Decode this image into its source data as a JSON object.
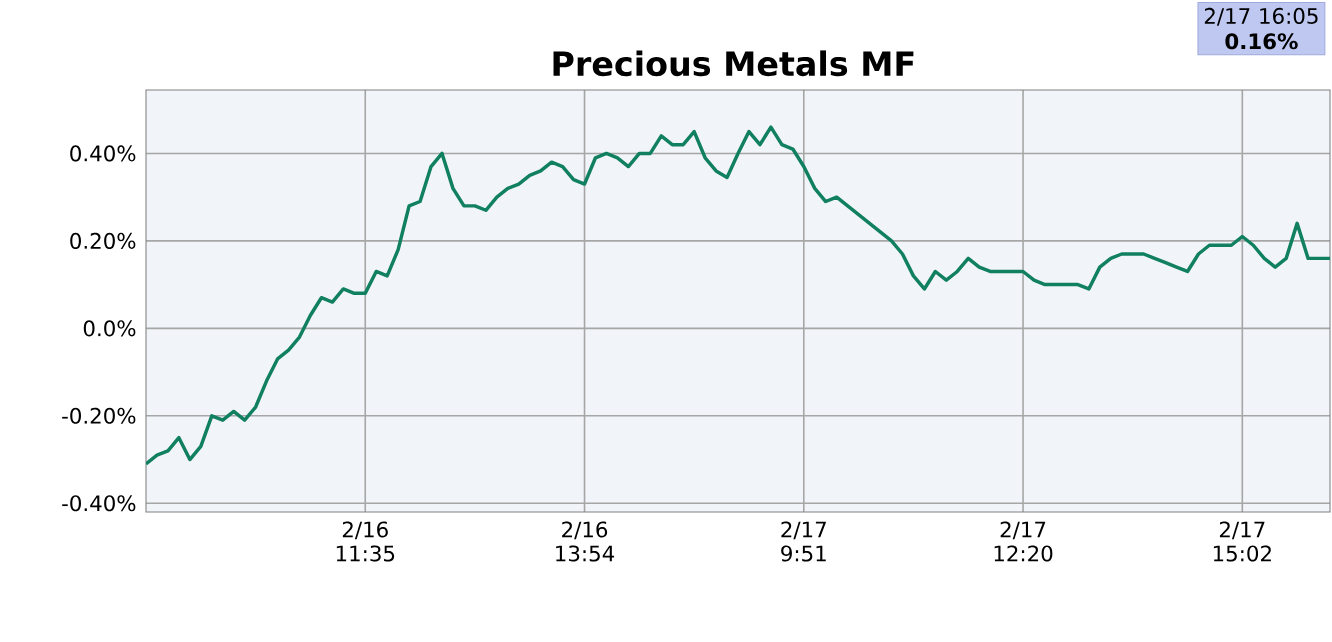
{
  "chart_data": {
    "type": "line",
    "title": "Precious Metals MF",
    "categories": [
      null,
      null,
      null,
      null,
      null,
      null,
      null,
      null,
      null,
      null,
      null,
      null,
      null,
      null,
      null,
      null,
      null,
      null,
      null,
      null,
      "2/16 11:35",
      null,
      null,
      null,
      null,
      null,
      null,
      null,
      null,
      null,
      null,
      null,
      null,
      null,
      null,
      null,
      null,
      null,
      null,
      null,
      "2/16 13:54",
      null,
      null,
      null,
      null,
      null,
      null,
      null,
      null,
      null,
      null,
      null,
      null,
      null,
      null,
      null,
      null,
      null,
      null,
      null,
      "2/17 9:51",
      null,
      null,
      null,
      null,
      null,
      null,
      null,
      null,
      null,
      null,
      null,
      null,
      null,
      null,
      null,
      null,
      null,
      null,
      null,
      "2/17 12:20",
      null,
      null,
      null,
      null,
      null,
      null,
      null,
      null,
      null,
      null,
      null,
      null,
      null,
      null,
      null,
      null,
      null,
      null,
      null,
      "2/17 15:02",
      null,
      null,
      null,
      null,
      null,
      null,
      null,
      null
    ],
    "series": [
      {
        "color": "#118060",
        "values": [
          -0.31,
          -0.29,
          -0.28,
          -0.25,
          -0.3,
          -0.27,
          -0.2,
          -0.21,
          -0.19,
          -0.21,
          -0.18,
          -0.12,
          -0.07,
          -0.05,
          -0.02,
          0.03,
          0.07,
          0.06,
          0.09,
          0.08,
          0.08,
          0.13,
          0.12,
          0.18,
          0.28,
          0.29,
          0.37,
          0.4,
          0.32,
          0.28,
          0.28,
          0.27,
          0.3,
          0.32,
          0.33,
          0.35,
          0.36,
          0.38,
          0.37,
          0.34,
          0.33,
          0.39,
          0.4,
          0.39,
          0.37,
          0.4,
          0.4,
          0.44,
          0.42,
          0.42,
          0.45,
          0.39,
          0.36,
          0.345,
          0.4,
          0.45,
          0.42,
          0.46,
          0.42,
          0.41,
          0.37,
          0.32,
          0.29,
          0.3,
          0.28,
          0.26,
          0.24,
          0.22,
          0.2,
          0.17,
          0.12,
          0.09,
          0.13,
          0.11,
          0.13,
          0.16,
          0.14,
          0.13,
          0.13,
          0.13,
          0.13,
          0.11,
          0.1,
          0.1,
          0.1,
          0.1,
          0.09,
          0.14,
          0.16,
          0.17,
          0.17,
          0.17,
          0.16,
          0.15,
          0.14,
          0.13,
          0.17,
          0.19,
          0.19,
          0.19,
          0.21,
          0.19,
          0.16,
          0.14,
          0.16,
          0.24,
          0.16,
          0.16,
          0.16
        ]
      }
    ],
    "ylim": [
      -0.42,
      0.545
    ],
    "yticks": [
      {
        "value": -0.4,
        "label": "-0.40%"
      },
      {
        "value": -0.2,
        "label": "-0.20%"
      },
      {
        "value": 0,
        "label": "0.0%"
      },
      {
        "value": 0.2,
        "label": "0.20%"
      },
      {
        "value": 0.4,
        "label": "0.40%"
      }
    ],
    "grid": true,
    "marker": "none",
    "line_style": "solid",
    "annotations": [
      "2/17 16:05",
      "**0.16%**"
    ]
  }
}
